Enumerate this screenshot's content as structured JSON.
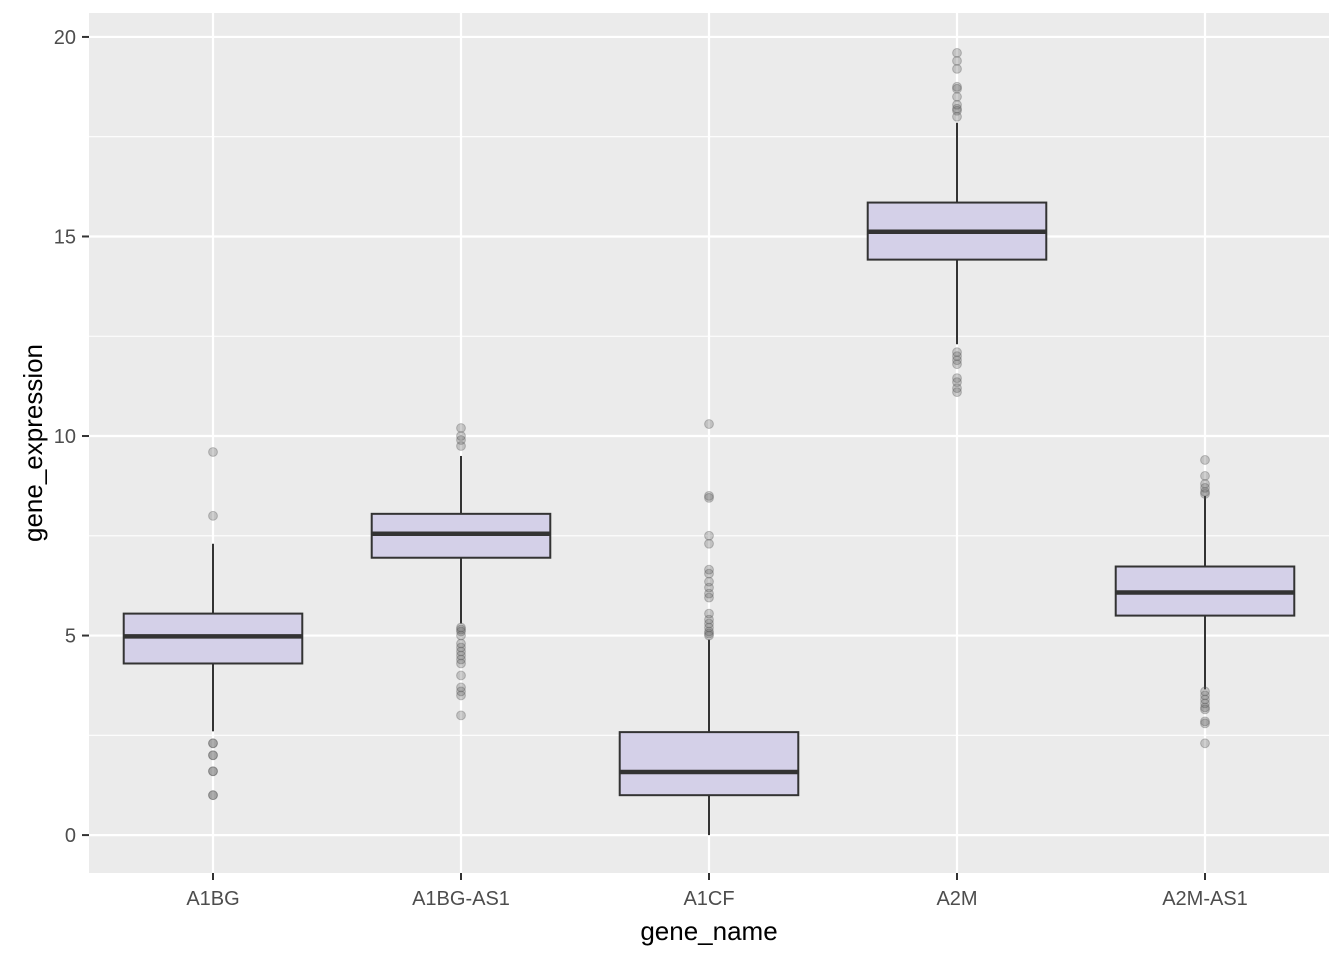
{
  "chart_data": {
    "type": "boxplot",
    "xlabel": "gene_name",
    "ylabel": "gene_expression",
    "ylim": [
      -0.95,
      20.6
    ],
    "y_ticks": [
      0,
      5,
      10,
      15,
      20
    ],
    "y_tick_labels": [
      "0",
      "5",
      "10",
      "15",
      "20"
    ],
    "grid": true,
    "box_fill": "#d4d0e8",
    "box_stroke": "#333333",
    "panel_background": "#ebebeb",
    "gridline_color": "#ffffff",
    "outlier_color": "#555555",
    "categories": [
      "A1BG",
      "A1BG-AS1",
      "A1CF",
      "A2M",
      "A2M-AS1"
    ],
    "boxes": [
      {
        "name": "A1BG",
        "whisker_low": 2.6,
        "q1": 4.3,
        "median": 4.98,
        "q3": 5.55,
        "whisker_high": 7.3,
        "outliers": [
          9.6,
          8.0,
          2.3,
          2.3,
          2.0,
          2.0,
          1.6,
          1.6,
          1.0,
          1.0
        ]
      },
      {
        "name": "A1BG-AS1",
        "whisker_low": 5.3,
        "q1": 6.95,
        "median": 7.55,
        "q3": 8.05,
        "whisker_high": 9.5,
        "outliers": [
          10.2,
          10.0,
          9.9,
          9.75,
          5.2,
          5.15,
          5.1,
          5.0,
          4.8,
          4.7,
          4.6,
          4.5,
          4.4,
          4.3,
          4.0,
          3.7,
          3.6,
          3.5,
          3.0
        ]
      },
      {
        "name": "A1CF",
        "whisker_low": 0.0,
        "q1": 1.0,
        "median": 1.58,
        "q3": 2.58,
        "whisker_high": 4.9,
        "outliers": [
          10.3,
          8.5,
          8.45,
          7.5,
          7.3,
          6.65,
          6.55,
          6.35,
          6.2,
          6.05,
          5.95,
          5.55,
          5.4,
          5.3,
          5.2,
          5.1,
          5.05,
          5.0
        ]
      },
      {
        "name": "A2M",
        "whisker_low": 12.3,
        "q1": 14.42,
        "median": 15.12,
        "q3": 15.85,
        "whisker_high": 17.85,
        "outliers": [
          19.6,
          19.4,
          19.2,
          18.75,
          18.7,
          18.5,
          18.3,
          18.2,
          18.15,
          18.0,
          12.1,
          12.0,
          11.9,
          11.8,
          11.45,
          11.35,
          11.2,
          11.1
        ]
      },
      {
        "name": "A2M-AS1",
        "whisker_low": 3.65,
        "q1": 5.5,
        "median": 6.08,
        "q3": 6.73,
        "whisker_high": 8.5,
        "outliers": [
          9.4,
          9.0,
          8.8,
          8.7,
          8.6,
          8.55,
          3.6,
          3.5,
          3.4,
          3.3,
          3.2,
          3.15,
          2.85,
          2.8,
          2.3
        ]
      }
    ]
  }
}
